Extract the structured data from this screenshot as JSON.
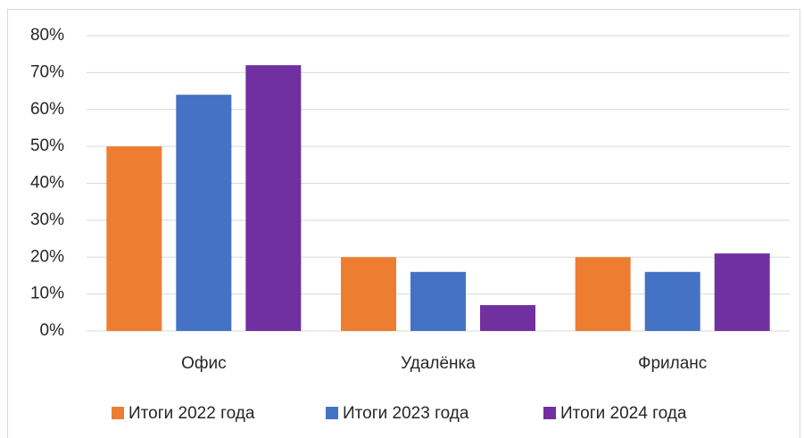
{
  "chart_data": {
    "type": "bar",
    "categories": [
      "Офис",
      "Удалёнка",
      "Фриланс"
    ],
    "series": [
      {
        "name": "Итоги 2022 года",
        "color": "#ed7d31",
        "values": [
          50,
          20,
          20
        ]
      },
      {
        "name": "Итоги 2023 года",
        "color": "#4472c4",
        "values": [
          64,
          16,
          16
        ]
      },
      {
        "name": "Итоги 2024 года",
        "color": "#7030a0",
        "values": [
          72,
          7,
          21
        ]
      }
    ],
    "ylim": [
      0,
      80
    ],
    "yticks": [
      {
        "value": 0,
        "label": "0%"
      },
      {
        "value": 10,
        "label": "10%"
      },
      {
        "value": 20,
        "label": "20%"
      },
      {
        "value": 30,
        "label": "30%"
      },
      {
        "value": 40,
        "label": "40%"
      },
      {
        "value": 50,
        "label": "50%"
      },
      {
        "value": 60,
        "label": "60%"
      },
      {
        "value": 70,
        "label": "70%"
      },
      {
        "value": 80,
        "label": "80%"
      }
    ],
    "grid": true,
    "legend": "bottom"
  }
}
